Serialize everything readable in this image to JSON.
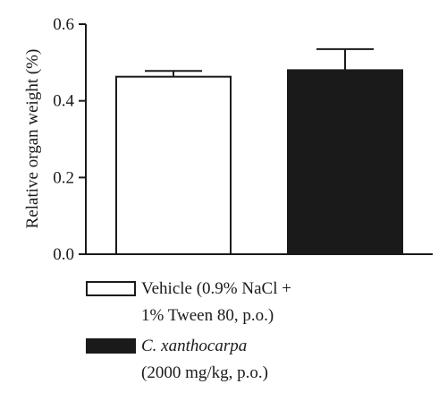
{
  "chart_data": {
    "type": "bar",
    "categories": [
      "Vehicle",
      "C. xanthocarpa"
    ],
    "series": [
      {
        "values": [
          0.463,
          0.48
        ],
        "errors": [
          0.015,
          0.055
        ],
        "colors": [
          "#ffffff",
          "#1a1a1a"
        ]
      }
    ],
    "ylabel": "Relative organ weight (%)",
    "ylim": [
      0,
      0.6
    ],
    "yticks": [
      "0.0",
      "0.2",
      "0.4",
      "0.6"
    ],
    "ytick_values": [
      0,
      0.2,
      0.4,
      0.6
    ],
    "grid": false,
    "legend_position": "bottom"
  },
  "legend": {
    "items": [
      {
        "line1": "Vehicle (0.9% NaCl +",
        "line2": "1% Tween 80, p.o.)",
        "color": "#ffffff"
      },
      {
        "line1": "C. xanthocarpa",
        "line2": "(2000 mg/kg, p.o.)",
        "color": "#1a1a1a"
      }
    ]
  }
}
